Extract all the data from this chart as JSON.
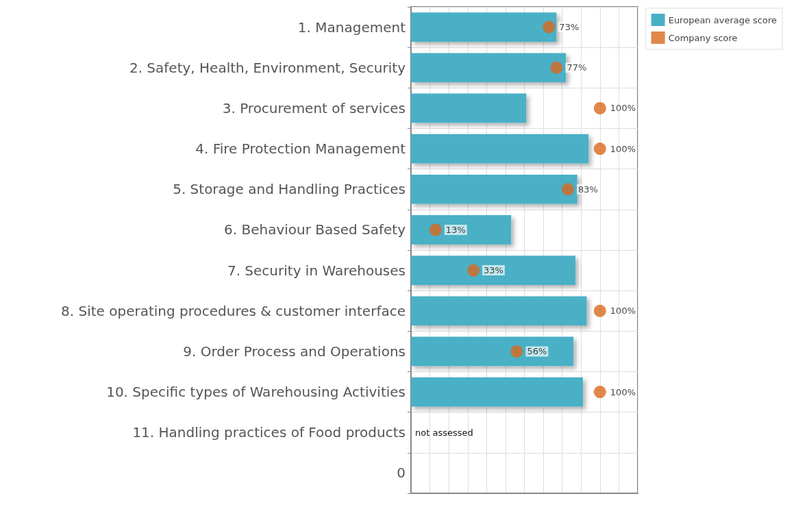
{
  "chart_data": {
    "type": "bar",
    "orientation": "horizontal",
    "categories": [
      "1. Management",
      "2. Safety, Health, Environment, Security",
      "3. Procurement of services",
      "4. Fire Protection Management",
      "5. Storage and Handling Practices",
      "6. Behaviour Based Safety",
      "7. Security in Warehouses",
      "8. Site operating procedures & customer interface",
      "9. Order Process and Operations",
      "10. Specific types of Warehousing Activities",
      "11. Handling practices of Food products",
      "0"
    ],
    "series": [
      {
        "name": "European average score",
        "color": "#4ab0c6",
        "values": [
          77,
          82,
          61,
          94,
          88,
          53,
          87,
          93,
          86,
          91,
          null,
          null
        ]
      },
      {
        "name": "Company score",
        "type": "scatter",
        "color": "#d9691e",
        "marker": "circle",
        "values": [
          73,
          77,
          100,
          100,
          83,
          13,
          33,
          100,
          56,
          100,
          null,
          null
        ],
        "value_labels": [
          "73%",
          "77%",
          "100%",
          "100%",
          "83%",
          "13%",
          "33%",
          "100%",
          "56%",
          "100%",
          "not assessed",
          null
        ]
      }
    ],
    "xlim": [
      0,
      120
    ],
    "xticks": [
      {
        "value": 0,
        "label": null
      },
      {
        "value": 10,
        "label": null
      },
      {
        "value": 20,
        "label": null
      },
      {
        "value": 30,
        "label": null
      },
      {
        "value": 40,
        "label": null
      },
      {
        "value": 50,
        "label": null
      },
      {
        "value": 60,
        "label": null
      },
      {
        "value": 70,
        "label": null
      },
      {
        "value": 80,
        "label": null
      },
      {
        "value": 90,
        "label": null
      },
      {
        "value": 100,
        "label": null
      },
      {
        "value": 110,
        "label": null
      },
      {
        "value": 120,
        "label": null
      }
    ],
    "grid": true,
    "legend": "top right"
  }
}
